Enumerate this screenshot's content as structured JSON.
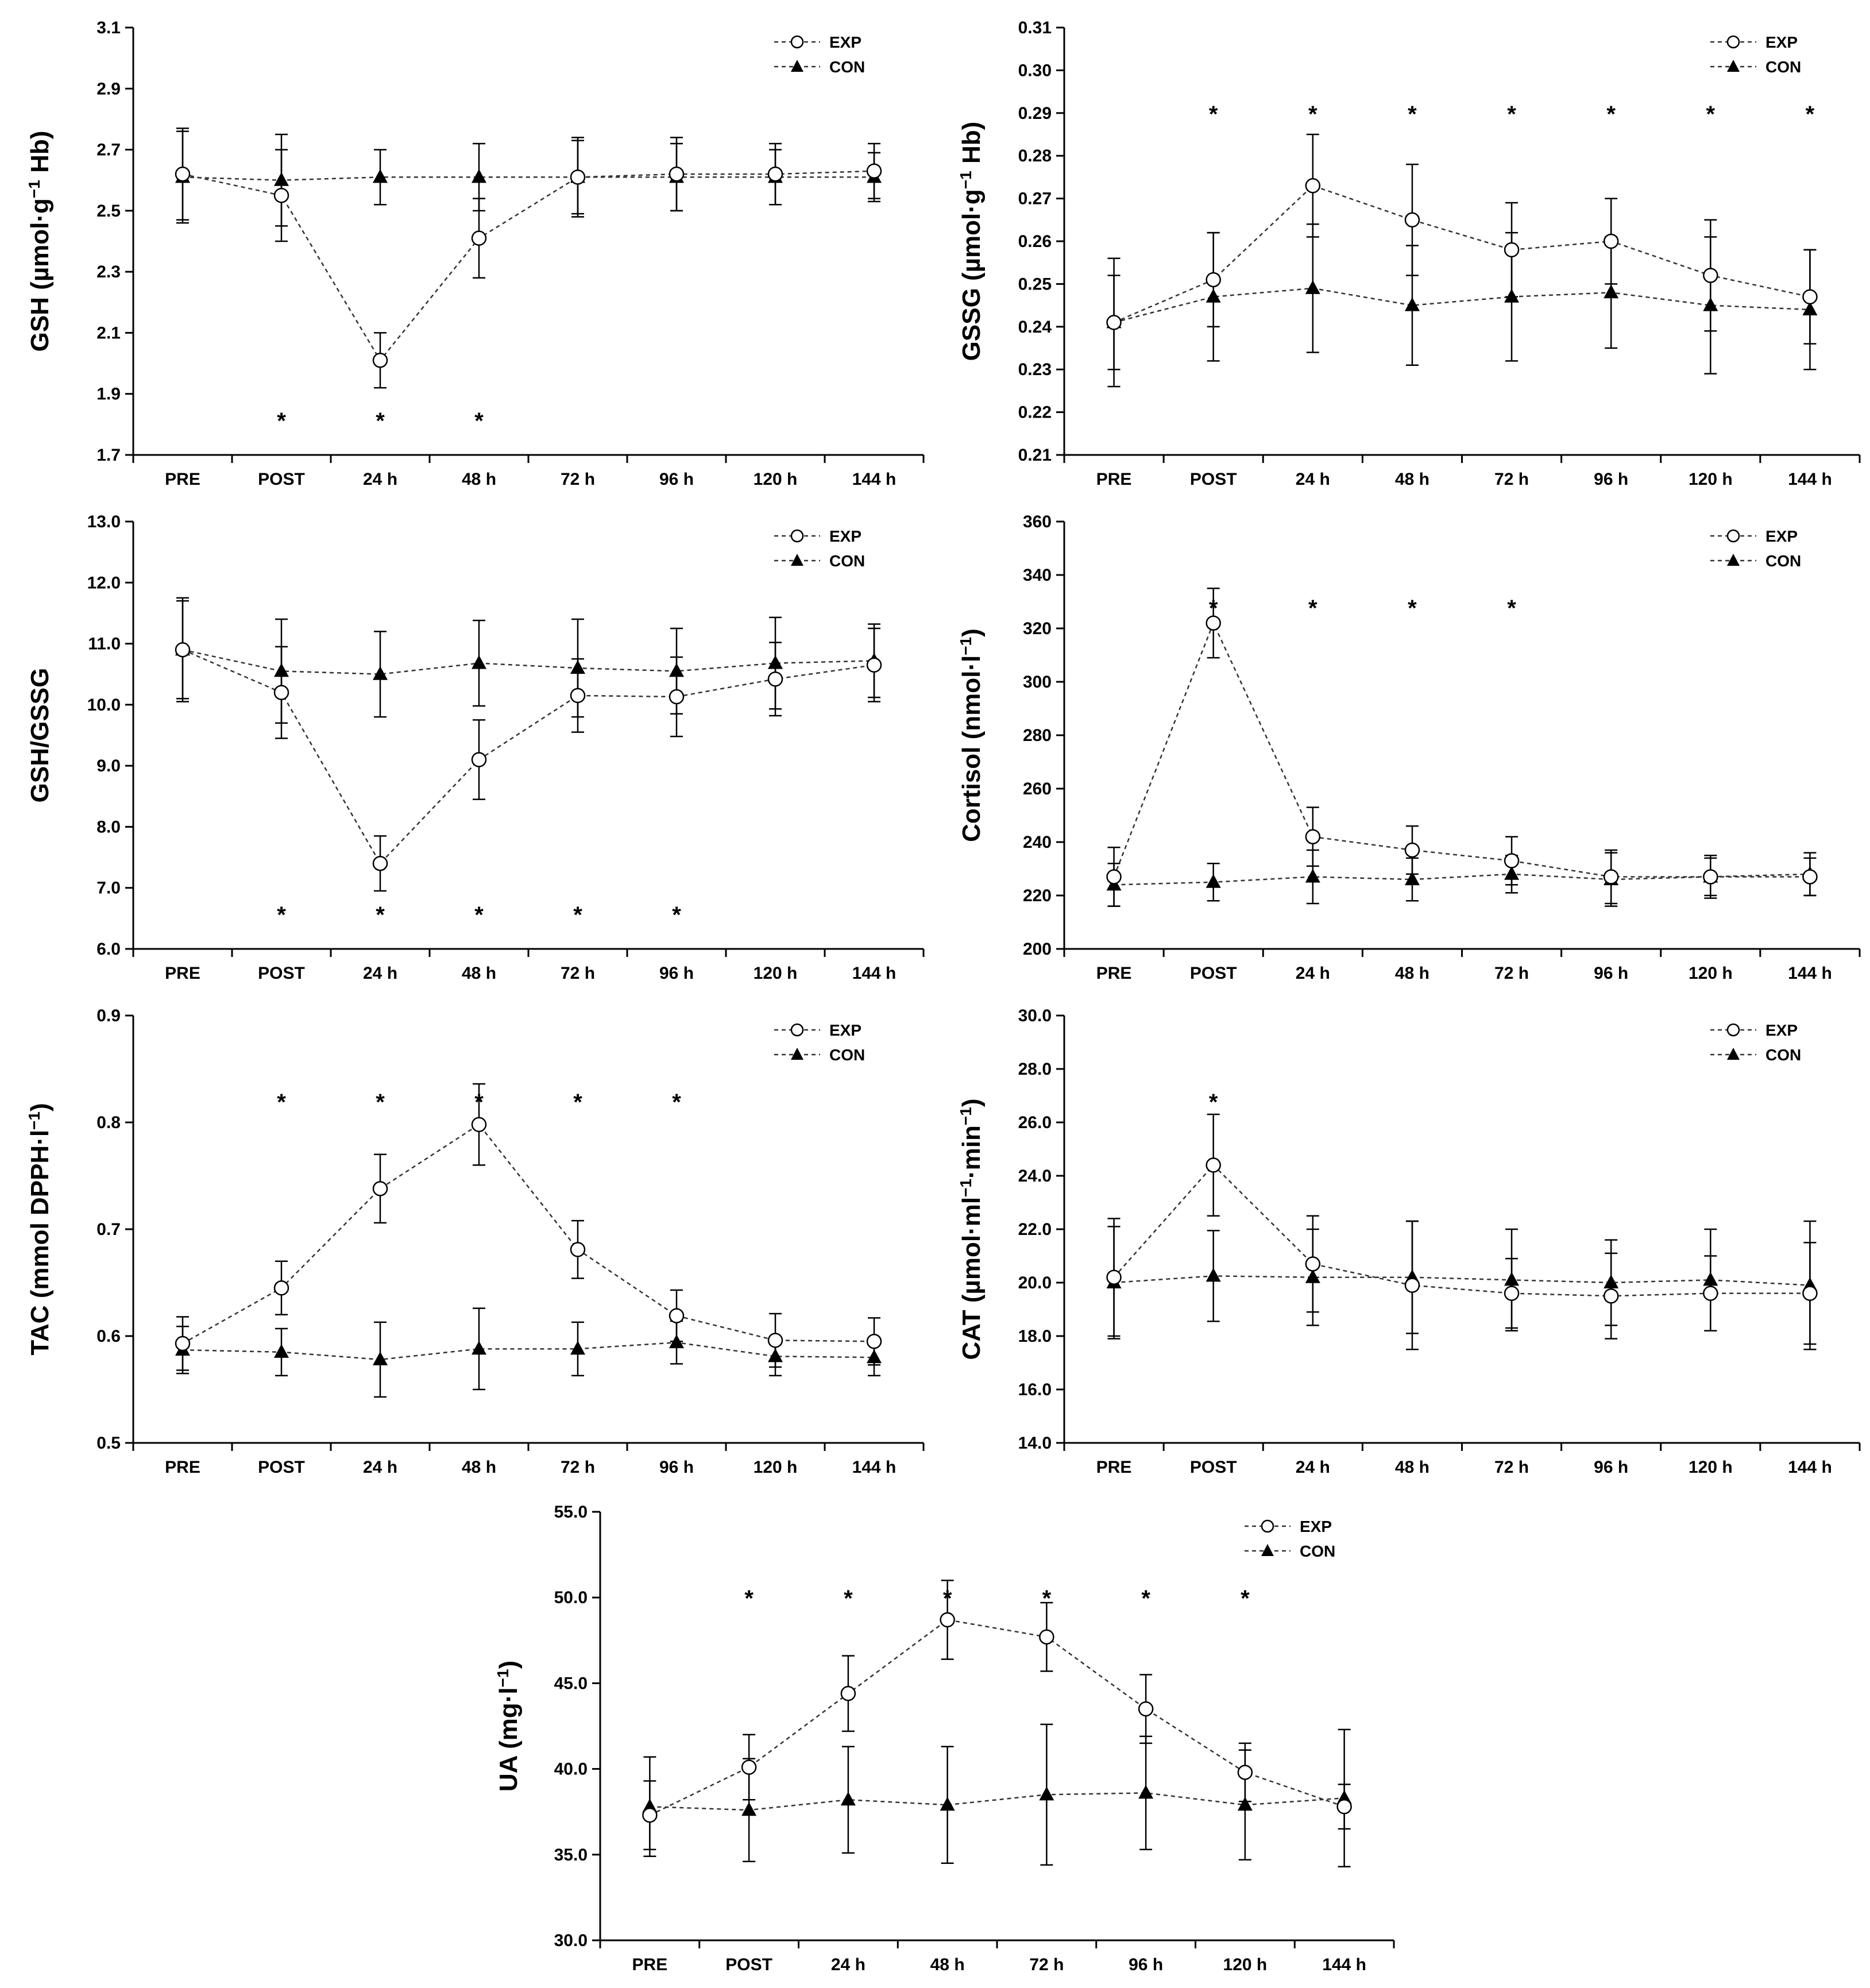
{
  "figure": {
    "categories": [
      "PRE",
      "POST",
      "24 h",
      "48 h",
      "72 h",
      "96 h",
      "120 h",
      "144 h"
    ],
    "series_names": [
      "EXP",
      "CON"
    ]
  },
  "chart_data": [
    {
      "id": "gsh",
      "type": "line",
      "ylabel_main": "GSH (µmol·g",
      "ylabel_sup": "−1",
      "ylabel_end": " Hb)",
      "ylim": [
        1.7,
        3.1
      ],
      "yticks": [
        "1.7",
        "1.9",
        "2.1",
        "2.3",
        "2.5",
        "2.7",
        "2.9",
        "3.1"
      ],
      "categories": [
        "PRE",
        "POST",
        "24 h",
        "48 h",
        "72 h",
        "96 h",
        "120 h",
        "144 h"
      ],
      "series": [
        {
          "name": "EXP",
          "values": [
            2.62,
            2.55,
            2.01,
            2.41,
            2.61,
            2.62,
            2.62,
            2.63
          ],
          "errors": [
            0.15,
            0.15,
            0.09,
            0.13,
            0.13,
            0.12,
            0.1,
            0.09
          ]
        },
        {
          "name": "CON",
          "values": [
            2.61,
            2.6,
            2.61,
            2.61,
            2.61,
            2.61,
            2.61,
            2.61
          ],
          "errors": [
            0.15,
            0.15,
            0.09,
            0.11,
            0.12,
            0.11,
            0.09,
            0.08
          ]
        }
      ],
      "significant": [
        "*",
        "*",
        "*"
      ],
      "significant_idx": [
        1,
        2,
        3
      ],
      "star_pos": "bottom"
    },
    {
      "id": "gssg",
      "type": "line",
      "ylabel_main": "GSSG (µmol·g",
      "ylabel_sup": "−1",
      "ylabel_end": " Hb)",
      "ylim": [
        0.21,
        0.31
      ],
      "yticks": [
        "0.21",
        "0.22",
        "0.23",
        "0.24",
        "0.25",
        "0.26",
        "0.27",
        "0.28",
        "0.29",
        "0.30",
        "0.31"
      ],
      "categories": [
        "PRE",
        "POST",
        "24 h",
        "48 h",
        "72 h",
        "96 h",
        "120 h",
        "144 h"
      ],
      "series": [
        {
          "name": "EXP",
          "values": [
            0.241,
            0.251,
            0.273,
            0.265,
            0.258,
            0.26,
            0.252,
            0.247
          ],
          "errors": [
            0.011,
            0.011,
            0.012,
            0.013,
            0.011,
            0.01,
            0.013,
            0.011
          ]
        },
        {
          "name": "CON",
          "values": [
            0.241,
            0.247,
            0.249,
            0.245,
            0.247,
            0.248,
            0.245,
            0.244
          ],
          "errors": [
            0.015,
            0.015,
            0.015,
            0.014,
            0.015,
            0.013,
            0.016,
            0.014
          ]
        }
      ],
      "significant": [
        "*",
        "*",
        "*",
        "*",
        "*",
        "*",
        "*"
      ],
      "significant_idx": [
        1,
        2,
        3,
        4,
        5,
        6,
        7
      ],
      "star_pos": "top"
    },
    {
      "id": "ratio",
      "type": "line",
      "ylabel_main": "GSH/GSSG",
      "ylabel_sup": "",
      "ylabel_end": "",
      "ylim": [
        6.0,
        13.0
      ],
      "yticks": [
        "6.0",
        "7.0",
        "8.0",
        "9.0",
        "10.0",
        "11.0",
        "12.0",
        "13.0"
      ],
      "categories": [
        "PRE",
        "POST",
        "24 h",
        "48 h",
        "72 h",
        "96 h",
        "120 h",
        "144 h"
      ],
      "series": [
        {
          "name": "EXP",
          "values": [
            10.9,
            10.2,
            7.4,
            9.1,
            10.15,
            10.13,
            10.42,
            10.65
          ],
          "errors": [
            0.8,
            0.75,
            0.45,
            0.65,
            0.6,
            0.65,
            0.6,
            0.6
          ]
        },
        {
          "name": "CON",
          "values": [
            10.9,
            10.55,
            10.5,
            10.68,
            10.6,
            10.55,
            10.68,
            10.72
          ],
          "errors": [
            0.85,
            0.85,
            0.7,
            0.7,
            0.8,
            0.7,
            0.75,
            0.6
          ]
        }
      ],
      "significant": [
        "*",
        "*",
        "*",
        "*",
        "*"
      ],
      "significant_idx": [
        1,
        2,
        3,
        4,
        5
      ],
      "star_pos": "bottom"
    },
    {
      "id": "cortisol",
      "type": "line",
      "ylabel_main": "Cortisol (nmol·l",
      "ylabel_sup": "−1",
      "ylabel_end": ")",
      "ylim": [
        200,
        360
      ],
      "yticks": [
        "200",
        "220",
        "240",
        "260",
        "280",
        "300",
        "320",
        "340",
        "360"
      ],
      "categories": [
        "PRE",
        "POST",
        "24 h",
        "48 h",
        "72 h",
        "96 h",
        "120 h",
        "144 h"
      ],
      "series": [
        {
          "name": "EXP",
          "values": [
            227,
            322,
            242,
            237,
            233,
            227,
            227,
            227
          ],
          "errors": [
            11,
            13,
            11,
            9,
            9,
            10,
            8,
            7
          ]
        },
        {
          "name": "CON",
          "values": [
            224,
            225,
            227,
            226,
            228,
            226,
            227,
            228
          ],
          "errors": [
            8,
            7,
            10,
            8,
            7,
            10,
            7,
            8
          ]
        }
      ],
      "significant": [
        "*",
        "*",
        "*",
        "*"
      ],
      "significant_idx": [
        1,
        2,
        3,
        4
      ],
      "star_pos": "top"
    },
    {
      "id": "tac",
      "type": "line",
      "ylabel_main": "TAC (mmol DPPH·l",
      "ylabel_sup": "−1",
      "ylabel_end": ")",
      "ylim": [
        0.5,
        0.9
      ],
      "yticks": [
        "0.5",
        "0.6",
        "0.7",
        "0.8",
        "0.9"
      ],
      "categories": [
        "PRE",
        "POST",
        "24 h",
        "48 h",
        "72 h",
        "96 h",
        "120 h",
        "144 h"
      ],
      "series": [
        {
          "name": "EXP",
          "values": [
            0.593,
            0.645,
            0.738,
            0.798,
            0.681,
            0.619,
            0.596,
            0.595
          ],
          "errors": [
            0.025,
            0.025,
            0.032,
            0.038,
            0.027,
            0.024,
            0.025,
            0.022
          ]
        },
        {
          "name": "CON",
          "values": [
            0.587,
            0.585,
            0.578,
            0.588,
            0.588,
            0.594,
            0.581,
            0.58
          ],
          "errors": [
            0.022,
            0.022,
            0.035,
            0.038,
            0.025,
            0.02,
            0.018,
            0.017
          ]
        }
      ],
      "significant": [
        "*",
        "*",
        "*",
        "*",
        "*"
      ],
      "significant_idx": [
        1,
        2,
        3,
        4,
        5
      ],
      "star_pos": "top"
    },
    {
      "id": "cat",
      "type": "line",
      "ylabel_main": "CAT (µmol·ml",
      "ylabel_sup": "−1",
      "ylabel_mid": "·min",
      "ylabel_sup2": "−1",
      "ylabel_end": ")",
      "ylim": [
        14.0,
        30.0
      ],
      "yticks": [
        "14.0",
        "16.0",
        "18.0",
        "20.0",
        "22.0",
        "24.0",
        "26.0",
        "28.0",
        "30.0"
      ],
      "categories": [
        "PRE",
        "POST",
        "24 h",
        "48 h",
        "72 h",
        "96 h",
        "120 h",
        "144 h"
      ],
      "series": [
        {
          "name": "EXP",
          "values": [
            20.2,
            24.4,
            20.7,
            19.9,
            19.6,
            19.5,
            19.6,
            19.6
          ],
          "errors": [
            2.2,
            1.9,
            1.8,
            2.4,
            1.3,
            1.6,
            1.4,
            1.9
          ]
        },
        {
          "name": "CON",
          "values": [
            20.0,
            20.25,
            20.2,
            20.2,
            20.1,
            20.0,
            20.1,
            19.9
          ],
          "errors": [
            2.1,
            1.7,
            1.8,
            2.1,
            1.9,
            1.6,
            1.9,
            2.4
          ]
        }
      ],
      "significant": [
        "*"
      ],
      "significant_idx": [
        1
      ],
      "star_pos": "top"
    },
    {
      "id": "ua",
      "type": "line",
      "ylabel_main": "UA (mg·l",
      "ylabel_sup": "−1",
      "ylabel_end": ")",
      "ylim": [
        30.0,
        55.0
      ],
      "yticks": [
        "30.0",
        "35.0",
        "40.0",
        "45.0",
        "50.0",
        "55.0"
      ],
      "categories": [
        "PRE",
        "POST",
        "24 h",
        "48 h",
        "72 h",
        "96 h",
        "120 h",
        "144 h"
      ],
      "series": [
        {
          "name": "EXP",
          "values": [
            37.3,
            40.1,
            44.4,
            48.7,
            47.7,
            43.5,
            39.8,
            37.8
          ],
          "errors": [
            2.0,
            1.9,
            2.2,
            2.3,
            2.0,
            2.0,
            1.7,
            1.3
          ]
        },
        {
          "name": "CON",
          "values": [
            37.8,
            37.6,
            38.2,
            37.9,
            38.5,
            38.6,
            37.9,
            38.3
          ],
          "errors": [
            2.9,
            3.0,
            3.1,
            3.4,
            4.1,
            3.3,
            3.2,
            4.0
          ]
        }
      ],
      "significant": [
        "*",
        "*",
        "*",
        "*",
        "*",
        "*"
      ],
      "significant_idx": [
        1,
        2,
        3,
        4,
        5,
        6
      ],
      "star_pos": "top"
    }
  ]
}
